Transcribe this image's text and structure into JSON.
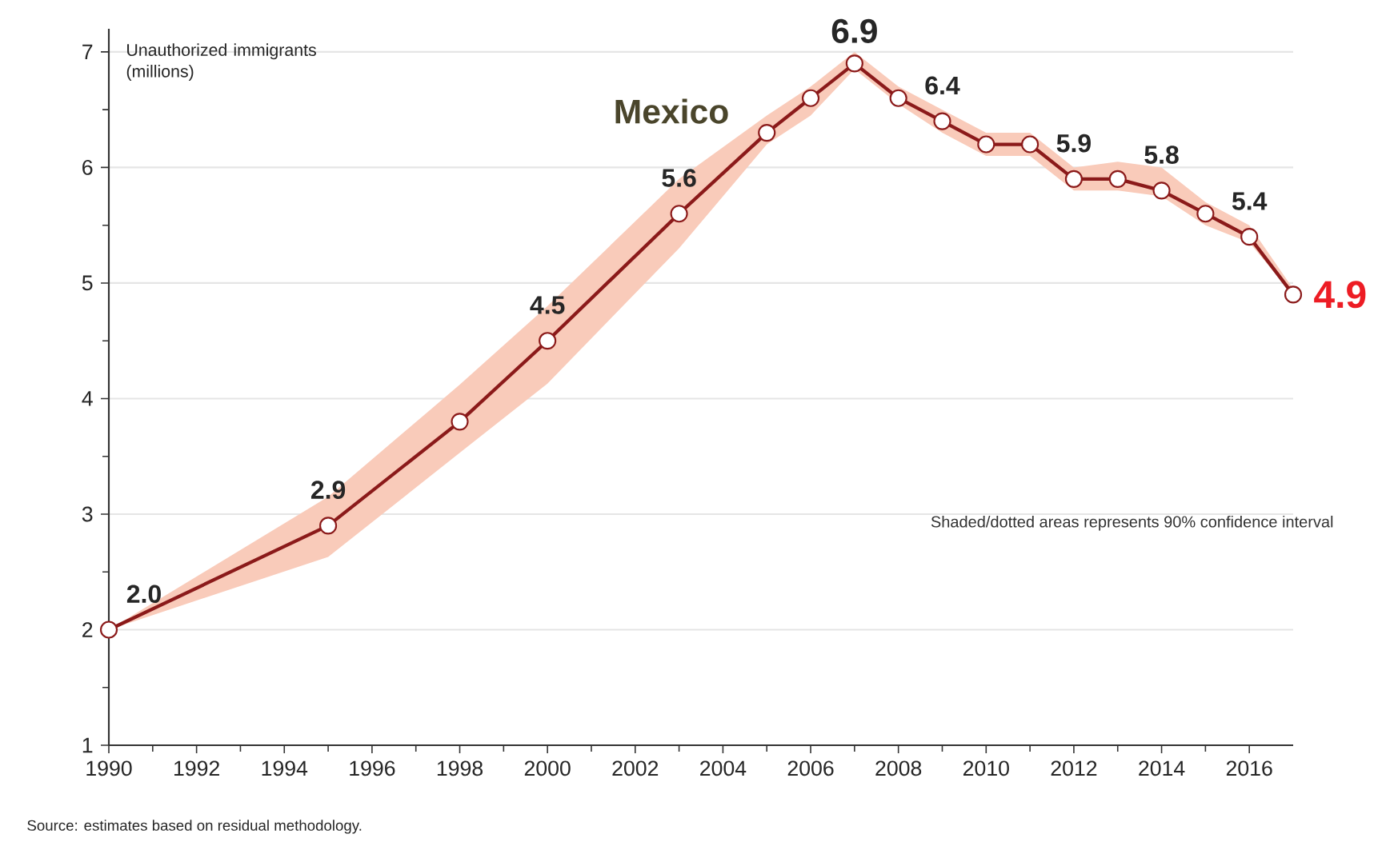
{
  "chart_data": {
    "type": "line",
    "ylabel": "Unauthorized immigrants (millions)",
    "x": [
      1990,
      1995,
      1998,
      2000,
      2003,
      2005,
      2006,
      2007,
      2008,
      2009,
      2010,
      2011,
      2012,
      2013,
      2014,
      2015,
      2016,
      2017
    ],
    "series": [
      {
        "name": "Mexico",
        "color": "#8b1a1a",
        "values": [
          2.0,
          2.9,
          3.8,
          4.5,
          5.6,
          6.3,
          6.6,
          6.9,
          6.6,
          6.4,
          6.2,
          6.2,
          5.9,
          5.9,
          5.8,
          5.6,
          5.4,
          4.9
        ],
        "lower": [
          2.0,
          2.63,
          3.53,
          4.13,
          5.3,
          6.2,
          6.45,
          6.85,
          6.55,
          6.3,
          6.1,
          6.1,
          5.8,
          5.8,
          5.75,
          5.5,
          5.35,
          4.9
        ],
        "upper": [
          2.0,
          3.15,
          4.12,
          4.8,
          5.9,
          6.45,
          6.7,
          7.0,
          6.7,
          6.5,
          6.3,
          6.3,
          6.0,
          6.05,
          6.0,
          5.7,
          5.5,
          4.95
        ],
        "value_labels": [
          "2.0",
          "2.9",
          null,
          "4.5",
          "5.6",
          null,
          null,
          "6.9",
          null,
          "6.4",
          null,
          null,
          "5.9",
          null,
          "5.8",
          null,
          "5.4",
          "4.9"
        ]
      }
    ],
    "xlim": [
      1990,
      2017
    ],
    "ylim": [
      1,
      7.2
    ],
    "xticks": [
      1990,
      1992,
      1994,
      1996,
      1998,
      2000,
      2002,
      2004,
      2006,
      2008,
      2010,
      2012,
      2014,
      2016
    ],
    "yticks": [
      1,
      2,
      3,
      4,
      5,
      6,
      7
    ],
    "grid": "y",
    "marker": "circle",
    "line_style": "solid",
    "legend": false,
    "annotations": [
      "Shaded/dotted areas represents 90% confidence interval",
      "Source: estimates based on residual methodology."
    ]
  }
}
